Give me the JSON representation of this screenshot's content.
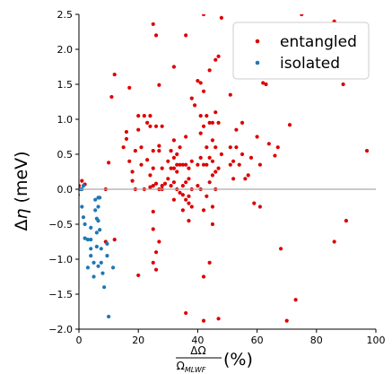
{
  "chart_data": {
    "type": "scatter",
    "title": "",
    "xlabel_frac_num": "ΔΩ",
    "xlabel_frac_den": "Ω",
    "xlabel_frac_den_sub": "MLWF",
    "xlabel_suffix": "(%)",
    "ylabel_prefix": "Δ",
    "ylabel_symbol": "η",
    "ylabel_unit": " (meV)",
    "xlim": [
      0,
      100
    ],
    "ylim": [
      -2.0,
      2.5
    ],
    "xticks": [
      0,
      20,
      40,
      60,
      80,
      100
    ],
    "xtick_labels": [
      "0",
      "20",
      "40",
      "60",
      "80",
      "100"
    ],
    "yticks": [
      -2.0,
      -1.5,
      -1.0,
      -0.5,
      0.0,
      0.5,
      1.0,
      1.5,
      2.0,
      2.5
    ],
    "ytick_labels": [
      "−2.0",
      "−1.5",
      "−1.0",
      "−0.5",
      "0.0",
      "0.5",
      "1.0",
      "1.5",
      "2.0",
      "2.5"
    ],
    "zero_line": true,
    "grid": false,
    "legend_position": "top-right",
    "series": [
      {
        "name": "entangled",
        "color": "#dd0000",
        "points": [
          [
            0,
            0.05
          ],
          [
            1,
            0.12
          ],
          [
            2,
            0.07
          ],
          [
            9,
            0.0
          ],
          [
            9,
            -0.75
          ],
          [
            10,
            0.38
          ],
          [
            11,
            1.32
          ],
          [
            12,
            1.64
          ],
          [
            12,
            -0.72
          ],
          [
            15,
            0.6
          ],
          [
            16,
            0.82
          ],
          [
            16,
            0.72
          ],
          [
            17,
            1.45
          ],
          [
            17,
            0.4
          ],
          [
            18,
            0.25
          ],
          [
            18,
            0.12
          ],
          [
            19,
            0.55
          ],
          [
            19,
            0.0
          ],
          [
            20,
            1.05
          ],
          [
            20,
            0.85
          ],
          [
            20,
            -1.23
          ],
          [
            21,
            0.6
          ],
          [
            21,
            0.35
          ],
          [
            22,
            1.05
          ],
          [
            22,
            0.0
          ],
          [
            23,
            0.95
          ],
          [
            23,
            0.42
          ],
          [
            24,
            0.9
          ],
          [
            24,
            0.2
          ],
          [
            24,
            1.05
          ],
          [
            24,
            0.03
          ],
          [
            25,
            2.36
          ],
          [
            25,
            0.55
          ],
          [
            25,
            0.3
          ],
          [
            25,
            0.05
          ],
          [
            25,
            -0.32
          ],
          [
            25,
            -0.57
          ],
          [
            25,
            -1.05
          ],
          [
            26,
            2.2
          ],
          [
            26,
            0.9
          ],
          [
            26,
            0.08
          ],
          [
            26,
            -0.9
          ],
          [
            26,
            -1.15
          ],
          [
            27,
            1.49
          ],
          [
            27,
            0.62
          ],
          [
            27,
            0.55
          ],
          [
            27,
            0.0
          ],
          [
            27,
            -0.75
          ],
          [
            28,
            0.9
          ],
          [
            28,
            0.3
          ],
          [
            28,
            0.05
          ],
          [
            28,
            0.0
          ],
          [
            29,
            0.08
          ],
          [
            30,
            0.4
          ],
          [
            30,
            0.15
          ],
          [
            31,
            0.55
          ],
          [
            31,
            0.3
          ],
          [
            31,
            0.05
          ],
          [
            32,
            1.75
          ],
          [
            32,
            0.7
          ],
          [
            32,
            0.45
          ],
          [
            32,
            0.3
          ],
          [
            32,
            0.1
          ],
          [
            32,
            -0.15
          ],
          [
            33,
            0.5
          ],
          [
            33,
            0.35
          ],
          [
            33,
            0.25
          ],
          [
            33,
            0.0
          ],
          [
            34,
            0.6
          ],
          [
            34,
            0.35
          ],
          [
            34,
            -0.05
          ],
          [
            35,
            0.35
          ],
          [
            35,
            0.05
          ],
          [
            35,
            -0.08
          ],
          [
            35,
            -0.3
          ],
          [
            36,
            2.2
          ],
          [
            36,
            0.75
          ],
          [
            36,
            0.35
          ],
          [
            36,
            0.1
          ],
          [
            36,
            -0.15
          ],
          [
            36,
            -1.77
          ],
          [
            37,
            0.3
          ],
          [
            37,
            0.15
          ],
          [
            37,
            -0.1
          ],
          [
            37,
            -0.2
          ],
          [
            37,
            -0.45
          ],
          [
            38,
            1.3
          ],
          [
            38,
            0.4
          ],
          [
            38,
            0.0
          ],
          [
            38,
            -0.25
          ],
          [
            39,
            1.2
          ],
          [
            40,
            1.55
          ],
          [
            40,
            0.35
          ],
          [
            40,
            0.05
          ],
          [
            41,
            1.52
          ],
          [
            41,
            1.05
          ],
          [
            41,
            0.8
          ],
          [
            41,
            0.45
          ],
          [
            41,
            0.0
          ],
          [
            42,
            2.5
          ],
          [
            42,
            1.4
          ],
          [
            42,
            0.9
          ],
          [
            42,
            0.35
          ],
          [
            42,
            -0.3
          ],
          [
            42,
            -1.25
          ],
          [
            42,
            -1.88
          ],
          [
            43,
            1.05
          ],
          [
            43,
            0.6
          ],
          [
            43,
            0.35
          ],
          [
            43,
            -0.1
          ],
          [
            44,
            1.7
          ],
          [
            44,
            0.95
          ],
          [
            44,
            0.45
          ],
          [
            44,
            0.1
          ],
          [
            44,
            -1.05
          ],
          [
            45,
            0.95
          ],
          [
            45,
            0.7
          ],
          [
            45,
            0.4
          ],
          [
            45,
            0.2
          ],
          [
            45,
            -0.25
          ],
          [
            45,
            -0.5
          ],
          [
            46,
            1.85
          ],
          [
            46,
            1.1
          ],
          [
            46,
            0.6
          ],
          [
            46,
            0.25
          ],
          [
            46,
            0.0
          ],
          [
            47,
            1.9
          ],
          [
            47,
            0.95
          ],
          [
            47,
            0.3
          ],
          [
            47,
            -1.85
          ],
          [
            48,
            2.45
          ],
          [
            48,
            0.5
          ],
          [
            51,
            1.35
          ],
          [
            51,
            0.6
          ],
          [
            51,
            0.35
          ],
          [
            52,
            0.4
          ],
          [
            52,
            0.15
          ],
          [
            53,
            1.8
          ],
          [
            53,
            0.85
          ],
          [
            53,
            0.6
          ],
          [
            54,
            1.9
          ],
          [
            54,
            0.35
          ],
          [
            55,
            0.95
          ],
          [
            55,
            0.5
          ],
          [
            56,
            1.65
          ],
          [
            56,
            0.15
          ],
          [
            57,
            0.2
          ],
          [
            58,
            0.45
          ],
          [
            59,
            -0.2
          ],
          [
            60,
            1.75
          ],
          [
            60,
            0.75
          ],
          [
            61,
            0.35
          ],
          [
            61,
            -0.25
          ],
          [
            62,
            1.52
          ],
          [
            63,
            1.5
          ],
          [
            64,
            0.65
          ],
          [
            66,
            0.48
          ],
          [
            67,
            0.6
          ],
          [
            68,
            -0.85
          ],
          [
            70,
            -1.88
          ],
          [
            71,
            0.92
          ],
          [
            73,
            -1.58
          ],
          [
            75,
            2.5
          ],
          [
            86,
            2.4
          ],
          [
            86,
            -0.75
          ],
          [
            89,
            1.5
          ],
          [
            90,
            -0.45
          ],
          [
            97,
            0.55
          ]
        ]
      },
      {
        "name": "isolated",
        "color": "#1f77b4",
        "points": [
          [
            -0.3,
            -0.08
          ],
          [
            0.5,
            0.0
          ],
          [
            1,
            0.0
          ],
          [
            1.5,
            0.05
          ],
          [
            1,
            -0.25
          ],
          [
            1.5,
            -0.4
          ],
          [
            2,
            -0.5
          ],
          [
            2,
            -0.7
          ],
          [
            3,
            -0.72
          ],
          [
            3,
            -1.12
          ],
          [
            4,
            -0.55
          ],
          [
            4,
            -0.72
          ],
          [
            4,
            -0.85
          ],
          [
            4,
            -0.95
          ],
          [
            5,
            -1.05
          ],
          [
            5,
            -1.25
          ],
          [
            5.5,
            -0.15
          ],
          [
            5.5,
            -0.3
          ],
          [
            6,
            -0.42
          ],
          [
            6,
            -0.62
          ],
          [
            6,
            -0.82
          ],
          [
            6.5,
            -0.12
          ],
          [
            6.5,
            -0.25
          ],
          [
            6.5,
            -0.45
          ],
          [
            6.5,
            -1.1
          ],
          [
            7,
            -0.12
          ],
          [
            7,
            -0.58
          ],
          [
            7.5,
            -0.85
          ],
          [
            7.5,
            -1.05
          ],
          [
            8,
            -1.2
          ],
          [
            8.5,
            -1.4
          ],
          [
            9.5,
            -0.78
          ],
          [
            9.5,
            -0.95
          ],
          [
            10,
            -1.82
          ],
          [
            11.5,
            -1.12
          ]
        ]
      }
    ]
  }
}
